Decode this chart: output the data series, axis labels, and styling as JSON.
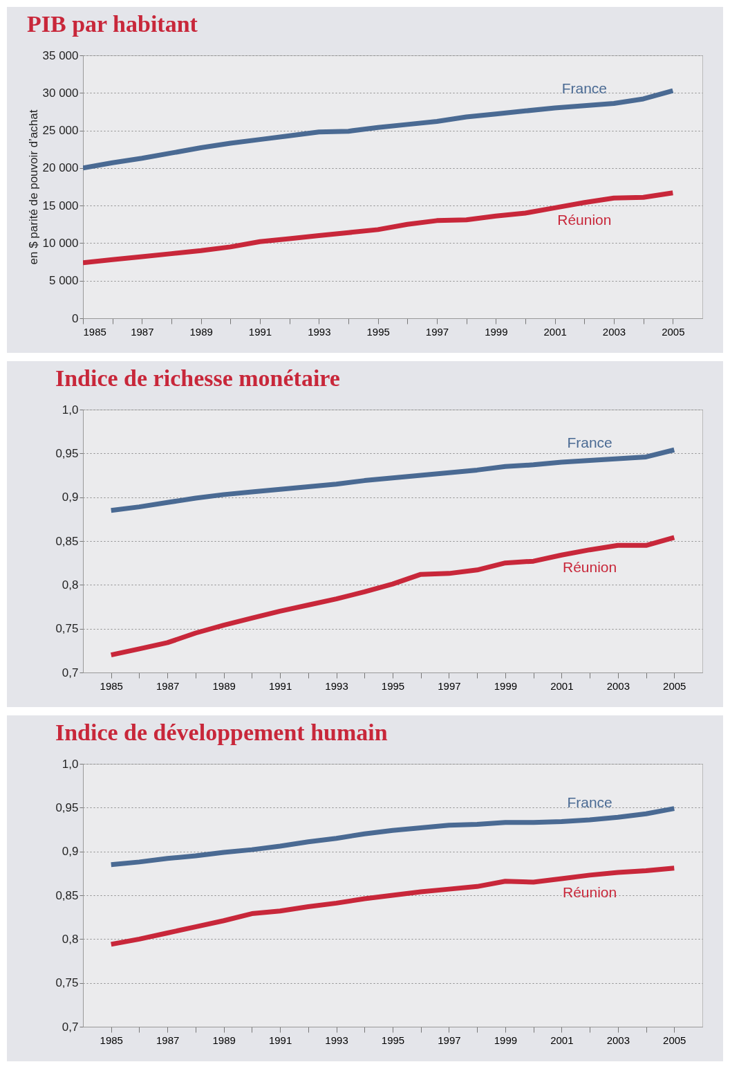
{
  "chart_data": [
    {
      "type": "line",
      "title": "PIB par habitant",
      "ylabel": "en $ parité de pouvoir d’achat",
      "grid": "y",
      "x": [
        1985,
        1986,
        1987,
        1988,
        1989,
        1990,
        1991,
        1992,
        1993,
        1994,
        1995,
        1996,
        1997,
        1998,
        1999,
        2000,
        2001,
        2002,
        2003,
        2004,
        2005
      ],
      "xlim": [
        1985,
        2006
      ],
      "xticks": [
        1985,
        {
          "value": 1986,
          "label": null
        },
        1987,
        {
          "value": 1988,
          "label": null
        },
        1989,
        {
          "value": 1990,
          "label": null
        },
        1991,
        {
          "value": 1992,
          "label": null
        },
        1993,
        {
          "value": 1994,
          "label": null
        },
        1995,
        {
          "value": 1996,
          "label": null
        },
        1997,
        {
          "value": 1998,
          "label": null
        },
        1999,
        {
          "value": 2000,
          "label": null
        },
        2001,
        {
          "value": 2002,
          "label": null
        },
        2003,
        {
          "value": 2004,
          "label": null
        },
        2005
      ],
      "ylim": [
        0,
        35000
      ],
      "yticks": [
        0,
        {
          "value": 5000,
          "label": "5 000"
        },
        {
          "value": 10000,
          "label": "10 000"
        },
        {
          "value": 15000,
          "label": "15 000"
        },
        {
          "value": 20000,
          "label": "20 000"
        },
        {
          "value": 25000,
          "label": "25 000"
        },
        {
          "value": 30000,
          "label": "30 000"
        },
        {
          "value": 35000,
          "label": "35 000"
        }
      ],
      "series": [
        {
          "name": "France",
          "color": "#4a6a93",
          "values": [
            20000,
            20700,
            21300,
            22000,
            22700,
            23300,
            23800,
            24300,
            24800,
            24900,
            25400,
            25800,
            26200,
            26800,
            27200,
            27600,
            28000,
            28300,
            28600,
            29200,
            30300
          ]
        },
        {
          "name": "Réunion",
          "color": "#c8273a",
          "values": [
            7400,
            7800,
            8200,
            8600,
            9000,
            9500,
            10200,
            10600,
            11000,
            11400,
            11800,
            12500,
            13000,
            13100,
            13600,
            14000,
            14700,
            15400,
            16000,
            16100,
            16700
          ]
        }
      ]
    },
    {
      "type": "line",
      "title": "Indice de richesse monétaire",
      "grid": "y",
      "x": [
        1985,
        1986,
        1987,
        1988,
        1989,
        1990,
        1991,
        1992,
        1993,
        1994,
        1995,
        1996,
        1997,
        1998,
        1999,
        2000,
        2001,
        2002,
        2003,
        2004,
        2005
      ],
      "xlim": [
        1984,
        2006
      ],
      "xticks": [
        1985,
        {
          "value": 1986,
          "label": null
        },
        1987,
        {
          "value": 1988,
          "label": null
        },
        1989,
        {
          "value": 1990,
          "label": null
        },
        1991,
        {
          "value": 1992,
          "label": null
        },
        1993,
        {
          "value": 1994,
          "label": null
        },
        1995,
        {
          "value": 1996,
          "label": null
        },
        1997,
        {
          "value": 1998,
          "label": null
        },
        1999,
        {
          "value": 2000,
          "label": null
        },
        2001,
        {
          "value": 2002,
          "label": null
        },
        2003,
        {
          "value": 2004,
          "label": null
        },
        2005
      ],
      "ylim": [
        0.7,
        1.0
      ],
      "yticks": [
        {
          "value": 0.7,
          "label": "0,7"
        },
        {
          "value": 0.75,
          "label": "0,75"
        },
        {
          "value": 0.8,
          "label": "0,8"
        },
        {
          "value": 0.85,
          "label": "0,85"
        },
        {
          "value": 0.9,
          "label": "0,9"
        },
        {
          "value": 0.95,
          "label": "0,95"
        },
        {
          "value": 1.0,
          "label": "1,0"
        }
      ],
      "series": [
        {
          "name": "France",
          "color": "#4a6a93",
          "values": [
            0.885,
            0.889,
            0.894,
            0.899,
            0.903,
            0.906,
            0.909,
            0.912,
            0.915,
            0.919,
            0.922,
            0.925,
            0.928,
            0.931,
            0.935,
            0.937,
            0.94,
            0.942,
            0.944,
            0.946,
            0.954
          ]
        },
        {
          "name": "Réunion",
          "color": "#c8273a",
          "values": [
            0.72,
            0.727,
            0.734,
            0.745,
            0.754,
            0.762,
            0.77,
            0.777,
            0.784,
            0.792,
            0.801,
            0.812,
            0.813,
            0.817,
            0.825,
            0.827,
            0.834,
            0.84,
            0.845,
            0.845,
            0.854
          ]
        }
      ]
    },
    {
      "type": "line",
      "title": "Indice de développement humain",
      "grid": "y",
      "x": [
        1985,
        1986,
        1987,
        1988,
        1989,
        1990,
        1991,
        1992,
        1993,
        1994,
        1995,
        1996,
        1997,
        1998,
        1999,
        2000,
        2001,
        2002,
        2003,
        2004,
        2005
      ],
      "xlim": [
        1984,
        2006
      ],
      "xticks": [
        1985,
        {
          "value": 1986,
          "label": null
        },
        1987,
        {
          "value": 1988,
          "label": null
        },
        1989,
        {
          "value": 1990,
          "label": null
        },
        1991,
        {
          "value": 1992,
          "label": null
        },
        1993,
        {
          "value": 1994,
          "label": null
        },
        1995,
        {
          "value": 1996,
          "label": null
        },
        1997,
        {
          "value": 1998,
          "label": null
        },
        1999,
        {
          "value": 2000,
          "label": null
        },
        2001,
        {
          "value": 2002,
          "label": null
        },
        2003,
        {
          "value": 2004,
          "label": null
        },
        2005
      ],
      "ylim": [
        0.7,
        1.0
      ],
      "yticks": [
        {
          "value": 0.7,
          "label": "0,7"
        },
        {
          "value": 0.75,
          "label": "0,75"
        },
        {
          "value": 0.8,
          "label": "0,8"
        },
        {
          "value": 0.85,
          "label": "0,85"
        },
        {
          "value": 0.9,
          "label": "0,9"
        },
        {
          "value": 0.95,
          "label": "0,95"
        },
        {
          "value": 1.0,
          "label": "1,0"
        }
      ],
      "series": [
        {
          "name": "France",
          "color": "#4a6a93",
          "values": [
            0.885,
            0.888,
            0.892,
            0.895,
            0.899,
            0.902,
            0.906,
            0.911,
            0.915,
            0.92,
            0.924,
            0.927,
            0.93,
            0.931,
            0.933,
            0.933,
            0.934,
            0.936,
            0.939,
            0.943,
            0.949
          ]
        },
        {
          "name": "Réunion",
          "color": "#c8273a",
          "values": [
            0.794,
            0.8,
            0.807,
            0.814,
            0.821,
            0.829,
            0.832,
            0.837,
            0.841,
            0.846,
            0.85,
            0.854,
            0.857,
            0.86,
            0.866,
            0.865,
            0.869,
            0.873,
            0.876,
            0.878,
            0.881
          ]
        }
      ]
    }
  ]
}
